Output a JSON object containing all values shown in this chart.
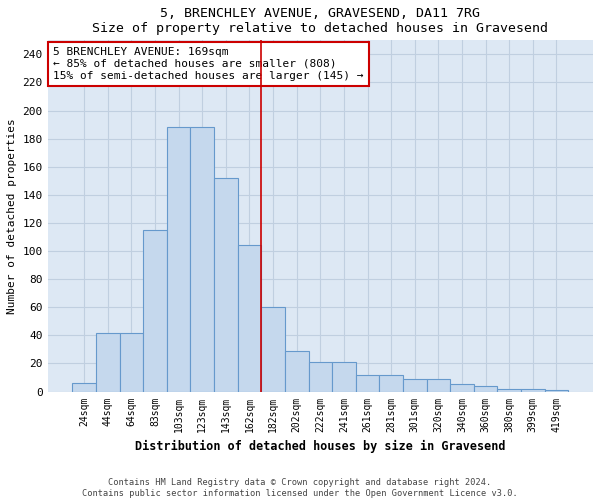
{
  "title": "5, BRENCHLEY AVENUE, GRAVESEND, DA11 7RG",
  "subtitle": "Size of property relative to detached houses in Gravesend",
  "xlabel": "Distribution of detached houses by size in Gravesend",
  "ylabel": "Number of detached properties",
  "categories": [
    "24sqm",
    "44sqm",
    "64sqm",
    "83sqm",
    "103sqm",
    "123sqm",
    "143sqm",
    "162sqm",
    "182sqm",
    "202sqm",
    "222sqm",
    "241sqm",
    "261sqm",
    "281sqm",
    "301sqm",
    "320sqm",
    "340sqm",
    "360sqm",
    "380sqm",
    "399sqm",
    "419sqm"
  ],
  "values": [
    6,
    42,
    42,
    115,
    188,
    188,
    152,
    104,
    60,
    29,
    21,
    21,
    12,
    12,
    9,
    9,
    5,
    4,
    2,
    2,
    1
  ],
  "bar_color": "#c5d8ed",
  "bar_edgecolor": "#6699cc",
  "vline_x": 7.5,
  "vline_color": "#cc0000",
  "annotation_text": "5 BRENCHLEY AVENUE: 169sqm\n← 85% of detached houses are smaller (808)\n15% of semi-detached houses are larger (145) →",
  "annotation_box_color": "#ffffff",
  "annotation_box_edgecolor": "#cc0000",
  "ylim": [
    0,
    250
  ],
  "yticks": [
    0,
    20,
    40,
    60,
    80,
    100,
    120,
    140,
    160,
    180,
    200,
    220,
    240
  ],
  "bg_color": "#dde8f4",
  "grid_color": "#c0cfe0",
  "footer1": "Contains HM Land Registry data © Crown copyright and database right 2024.",
  "footer2": "Contains public sector information licensed under the Open Government Licence v3.0."
}
